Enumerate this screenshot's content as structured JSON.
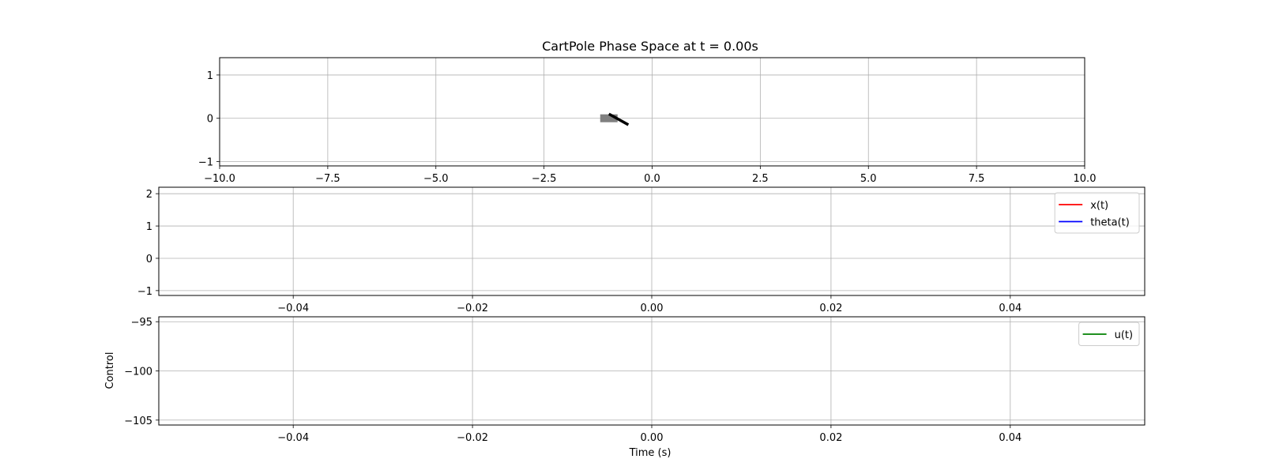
{
  "chart_data": [
    {
      "type": "scatter",
      "title": "CartPole Phase Space at t = 0.00s",
      "xlabel": "",
      "ylabel": "",
      "xlim": [
        -10,
        10
      ],
      "ylim": [
        -1.1,
        1.4
      ],
      "xticks": [
        -10,
        -7.5,
        -5,
        -2.5,
        0,
        2.5,
        5,
        7.5,
        10
      ],
      "xtick_labels": [
        "−10.0",
        "−7.5",
        "−5.0",
        "−2.5",
        "0.0",
        "2.5",
        "5.0",
        "7.5",
        "10.0"
      ],
      "yticks": [
        -1,
        0,
        1
      ],
      "ytick_labels": [
        "−1",
        "0",
        "1"
      ],
      "grid": true,
      "cart": {
        "x": -1.0,
        "color": "#808080"
      },
      "pole": {
        "x1": -1.0,
        "y1": 0.1,
        "x2": -0.55,
        "y2": -0.15,
        "color": "#000000"
      }
    },
    {
      "type": "line",
      "title": "",
      "xlabel": "",
      "ylabel": "",
      "xlim": [
        -0.055,
        0.055
      ],
      "ylim": [
        -1.15,
        2.2
      ],
      "xticks": [
        -0.04,
        -0.02,
        0,
        0.02,
        0.04
      ],
      "xtick_labels": [
        "−0.04",
        "−0.02",
        "0.00",
        "0.02",
        "0.04"
      ],
      "yticks": [
        -1,
        0,
        1,
        2
      ],
      "ytick_labels": [
        "−1",
        "0",
        "1",
        "2"
      ],
      "grid": true,
      "legend_position": "top-right",
      "series": [
        {
          "name": "x(t)",
          "color": "#ff0000",
          "x": [],
          "y": []
        },
        {
          "name": "theta(t)",
          "color": "#0000ff",
          "x": [],
          "y": []
        }
      ]
    },
    {
      "type": "line",
      "title": "",
      "xlabel": "Time (s)",
      "ylabel": "Control",
      "xlim": [
        -0.055,
        0.055
      ],
      "ylim": [
        -105.5,
        -94.5
      ],
      "xticks": [
        -0.04,
        -0.02,
        0,
        0.02,
        0.04
      ],
      "xtick_labels": [
        "−0.04",
        "−0.02",
        "0.00",
        "0.02",
        "0.04"
      ],
      "yticks": [
        -105,
        -100,
        -95
      ],
      "ytick_labels": [
        "−105",
        "−100",
        "−95"
      ],
      "grid": true,
      "legend_position": "top-right",
      "series": [
        {
          "name": "u(t)",
          "color": "#008000",
          "x": [],
          "y": []
        }
      ]
    }
  ]
}
